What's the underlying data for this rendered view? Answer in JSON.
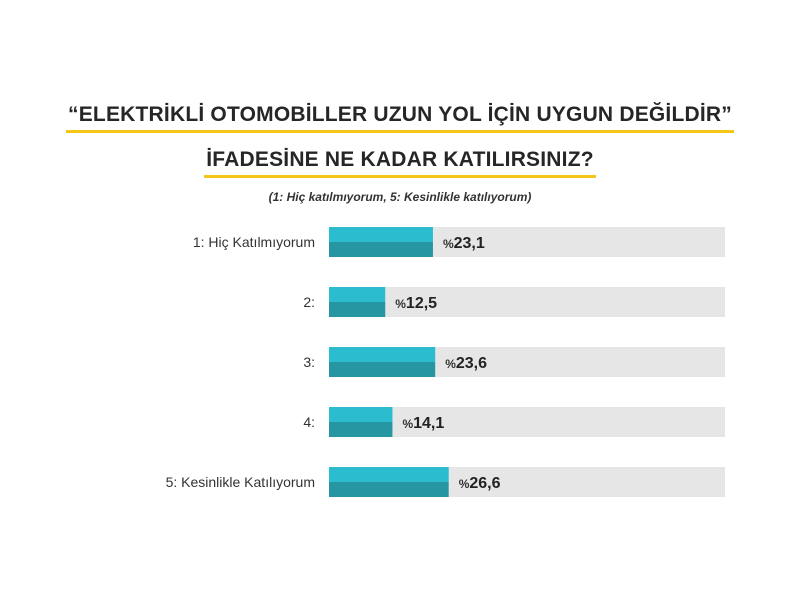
{
  "header": {
    "title_line1": "“ELEKTRİKLİ OTOMOBİLLER UZUN YOL İÇİN UYGUN DEĞİLDİR”",
    "title_line2": "İFADESİNE NE KADAR KATILIRSINIZ?",
    "subtitle": "(1: Hiç katılmıyorum, 5: Kesinlikle katılıyorum)"
  },
  "colors": {
    "bar_top": "#2bbcd0",
    "bar_bottom": "#2796a3",
    "track": "#e6e6e6",
    "underline": "#f5c518"
  },
  "chart_data": {
    "type": "bar",
    "orientation": "horizontal",
    "categories": [
      "1: Hiç Katılmıyorum",
      "2:",
      "3:",
      "4:",
      "5: Kesinlikle Katılıyorum"
    ],
    "values": [
      23.1,
      12.5,
      23.6,
      14.1,
      26.6
    ],
    "value_labels": [
      "23,1",
      "12,5",
      "23,6",
      "14,1",
      "26,6"
    ],
    "value_prefix": "%",
    "xlim": [
      0,
      88
    ],
    "grid": false,
    "legend": "none"
  }
}
